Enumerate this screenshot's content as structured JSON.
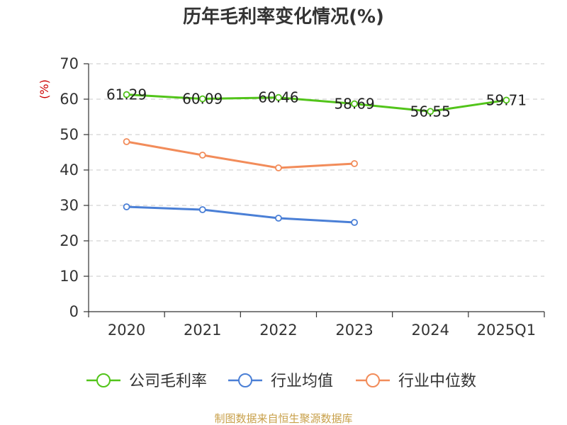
{
  "chart_data": {
    "type": "line",
    "title": "历年毛利率变化情况(%)",
    "unit_label": "(%)",
    "categories": [
      "2020",
      "2021",
      "2022",
      "2023",
      "2024",
      "2025Q1"
    ],
    "ylim": [
      0,
      70
    ],
    "yticks": [
      0,
      10,
      20,
      30,
      40,
      50,
      60,
      70
    ],
    "grid": true,
    "legend_position": "bottom",
    "series": [
      {
        "name": "公司毛利率",
        "color": "#52c41a",
        "values": [
          61.29,
          60.09,
          60.46,
          58.69,
          56.55,
          59.71
        ],
        "labels": [
          "61.29",
          "60.09",
          "60.46",
          "58.69",
          "56.55",
          "59.71"
        ]
      },
      {
        "name": "行业均值",
        "color": "#4a7fd6",
        "values": [
          29.6,
          28.8,
          26.4,
          25.2,
          null,
          null
        ]
      },
      {
        "name": "行业中位数",
        "color": "#f28c5a",
        "values": [
          48.0,
          44.2,
          40.6,
          41.8,
          null,
          null
        ]
      }
    ],
    "source": "制图数据来自恒生聚源数据库"
  }
}
